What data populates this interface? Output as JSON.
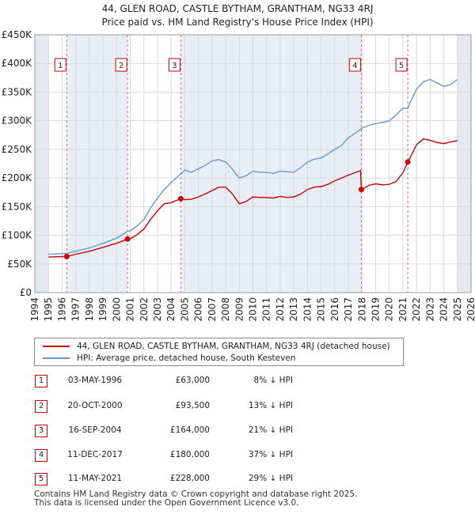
{
  "colors": {
    "price_paid": "#cc0000",
    "hpi": "#6699cc",
    "band": "#e8eef8",
    "marker_line": "#e06666"
  },
  "title_line1": "44, GLEN ROAD, CASTLE BYTHAM, GRANTHAM, NG33 4RJ",
  "title_line2": "Price paid vs. HM Land Registry's House Price Index (HPI)",
  "legend": {
    "price_label": "44, GLEN ROAD, CASTLE BYTHAM, GRANTHAM, NG33 4RJ (detached house)",
    "hpi_label": "HPI: Average price, detached house, South Kesteven"
  },
  "sales_table": [
    {
      "num": "1",
      "date": "03-MAY-1996",
      "price": "£63,000",
      "hpi": "8% ↓ HPI"
    },
    {
      "num": "2",
      "date": "20-OCT-2000",
      "price": "£93,500",
      "hpi": "13% ↓ HPI"
    },
    {
      "num": "3",
      "date": "16-SEP-2004",
      "price": "£164,000",
      "hpi": "21% ↓ HPI"
    },
    {
      "num": "4",
      "date": "11-DEC-2017",
      "price": "£180,000",
      "hpi": "37% ↓ HPI"
    },
    {
      "num": "5",
      "date": "11-MAY-2021",
      "price": "£228,000",
      "hpi": "29% ↓ HPI"
    }
  ],
  "footer_line1": "Contains HM Land Registry data © Crown copyright and database right 2025.",
  "footer_line2": "This data is licensed under the Open Government Licence v3.0.",
  "chart_data": {
    "type": "line",
    "title": "44, GLEN ROAD, CASTLE BYTHAM, GRANTHAM, NG33 4RJ",
    "subtitle": "Price paid vs. HM Land Registry's House Price Index (HPI)",
    "xlabel": "",
    "ylabel": "",
    "xlim": [
      1994,
      2026
    ],
    "ylim": [
      0,
      450000
    ],
    "grid": true,
    "x_ticks": [
      1994,
      1995,
      1996,
      1997,
      1998,
      1999,
      2000,
      2001,
      2002,
      2003,
      2004,
      2005,
      2006,
      2007,
      2008,
      2009,
      2010,
      2011,
      2012,
      2013,
      2014,
      2015,
      2016,
      2017,
      2018,
      2019,
      2020,
      2021,
      2022,
      2023,
      2024,
      2025,
      2026
    ],
    "y_ticks": [
      {
        "value": 0,
        "label": "£0"
      },
      {
        "value": 50000,
        "label": "£50K"
      },
      {
        "value": 100000,
        "label": "£100K"
      },
      {
        "value": 150000,
        "label": "£150K"
      },
      {
        "value": 200000,
        "label": "£200K"
      },
      {
        "value": 250000,
        "label": "£250K"
      },
      {
        "value": 300000,
        "label": "£300K"
      },
      {
        "value": 350000,
        "label": "£350K"
      },
      {
        "value": 400000,
        "label": "£400K"
      },
      {
        "value": 450000,
        "label": "£450K"
      }
    ],
    "shaded_ranges": [
      [
        1994,
        1995
      ],
      [
        2025,
        2026
      ]
    ],
    "sales": [
      {
        "label": "1",
        "x": 1996.34,
        "y": 63000
      },
      {
        "label": "2",
        "x": 2000.8,
        "y": 93500
      },
      {
        "label": "3",
        "x": 2004.71,
        "y": 164000
      },
      {
        "label": "4",
        "x": 2017.95,
        "y": 180000
      },
      {
        "label": "5",
        "x": 2021.36,
        "y": 228000
      }
    ],
    "series": [
      {
        "name": "HPI: Average price, detached house, South Kesteven",
        "x": [
          1995,
          1995.5,
          1996,
          1996.34,
          1997,
          1998,
          1999,
          2000,
          2000.8,
          2001,
          2001.5,
          2002,
          2002.5,
          2003,
          2003.5,
          2004,
          2004.71,
          2005,
          2005.5,
          2006,
          2006.5,
          2007,
          2007.5,
          2008,
          2008.5,
          2009,
          2009.5,
          2010,
          2010.5,
          2011,
          2011.5,
          2012,
          2012.5,
          2013,
          2013.5,
          2014,
          2014.5,
          2015,
          2015.5,
          2016,
          2016.5,
          2017,
          2017.95,
          2018,
          2018.5,
          2019,
          2019.5,
          2020,
          2020.5,
          2021,
          2021.36,
          2021.5,
          2022,
          2022.5,
          2023,
          2023.5,
          2024,
          2024.5,
          2025
        ],
        "values": [
          67000,
          67500,
          68000,
          68500,
          72000,
          78000,
          86000,
          95000,
          107000,
          108000,
          116000,
          128000,
          148000,
          165000,
          180000,
          192000,
          207000,
          214000,
          210000,
          216000,
          222000,
          230000,
          232000,
          228000,
          215000,
          200000,
          204000,
          212000,
          210000,
          210000,
          208000,
          212000,
          211000,
          210000,
          218000,
          228000,
          233000,
          235000,
          242000,
          250000,
          257000,
          270000,
          286000,
          287000,
          292000,
          295000,
          297000,
          300000,
          310000,
          322000,
          321000,
          330000,
          355000,
          368000,
          372000,
          366000,
          360000,
          363000,
          372000
        ]
      },
      {
        "name": "44, GLEN ROAD, CASTLE BYTHAM, GRANTHAM, NG33 4RJ (detached house)",
        "x": [
          1995,
          1995.5,
          1996,
          1996.34,
          1997,
          1998,
          1999,
          2000,
          2000.8,
          2001,
          2001.5,
          2002,
          2002.5,
          2003,
          2003.5,
          2004,
          2004.71,
          2005,
          2005.5,
          2006,
          2006.5,
          2007,
          2007.5,
          2008,
          2008.5,
          2009,
          2009.5,
          2010,
          2010.5,
          2011,
          2011.5,
          2012,
          2012.5,
          2013,
          2013.5,
          2014,
          2014.5,
          2015,
          2015.5,
          2016,
          2016.5,
          2017,
          2017.9,
          2017.95,
          2018,
          2018.5,
          2019,
          2019.5,
          2020,
          2020.5,
          2021,
          2021.36,
          2021.5,
          2022,
          2022.5,
          2023,
          2023.5,
          2024,
          2024.5,
          2025
        ],
        "values": [
          62000,
          62500,
          62800,
          63000,
          67000,
          72000,
          79000,
          86000,
          93500,
          94000,
          101000,
          111000,
          128000,
          143000,
          155000,
          157000,
          164000,
          162000,
          163000,
          167000,
          172000,
          178000,
          184000,
          184000,
          172000,
          155000,
          159000,
          167000,
          166000,
          166000,
          165000,
          168000,
          166000,
          167000,
          172000,
          180000,
          184000,
          185000,
          189000,
          195000,
          200000,
          205000,
          213000,
          180000,
          180000,
          187000,
          190000,
          188000,
          189000,
          194000,
          209000,
          228000,
          234000,
          258000,
          268000,
          266000,
          262000,
          260000,
          263000,
          265000
        ]
      }
    ]
  }
}
